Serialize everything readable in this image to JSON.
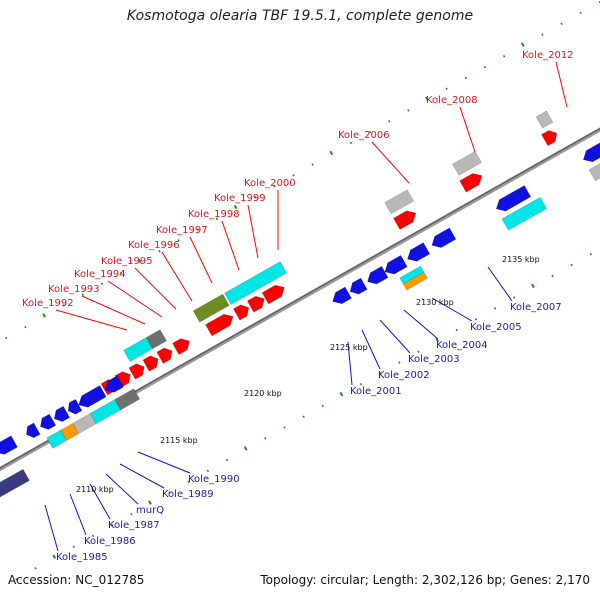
{
  "title": "Kosmotoga olearia TBF 19.5.1, complete genome",
  "footer": {
    "accession": "Accession: NC_012785",
    "summary": "Topology: circular; Length: 2,302,126 bp; Genes: 2,170"
  },
  "colors": {
    "forward_cds": "#ff0000",
    "reverse_cds": "#1010e0",
    "rna": "#00e5e5",
    "pseudo_gray": "#b8b8b8",
    "dark_gray": "#707070",
    "olive": "#6b8e23",
    "orange": "#ff9900",
    "navy": "#3a3a80",
    "backbone": "#808080",
    "tick": "#228b22"
  },
  "kbp_ticks": [
    "2110 kbp",
    "2115 kbp",
    "2120 kbp",
    "2125 kbp",
    "2130 kbp",
    "2135 kbp"
  ],
  "forward_labels": [
    "Kole_1992",
    "Kole_1993",
    "Kole_1994",
    "Kole_1995",
    "Kole_1996",
    "Kole_1997",
    "Kole_1998",
    "Kole_1999",
    "Kole_2000",
    "Kole_2006",
    "Kole_2008",
    "Kole_2012"
  ],
  "reverse_labels": [
    "Kole_1985",
    "Kole_1986",
    "Kole_1987",
    "murQ",
    "Kole_1989",
    "Kole_1990",
    "Kole_2001",
    "Kole_2002",
    "Kole_2003",
    "Kole_2004",
    "Kole_2005",
    "Kole_2007"
  ]
}
